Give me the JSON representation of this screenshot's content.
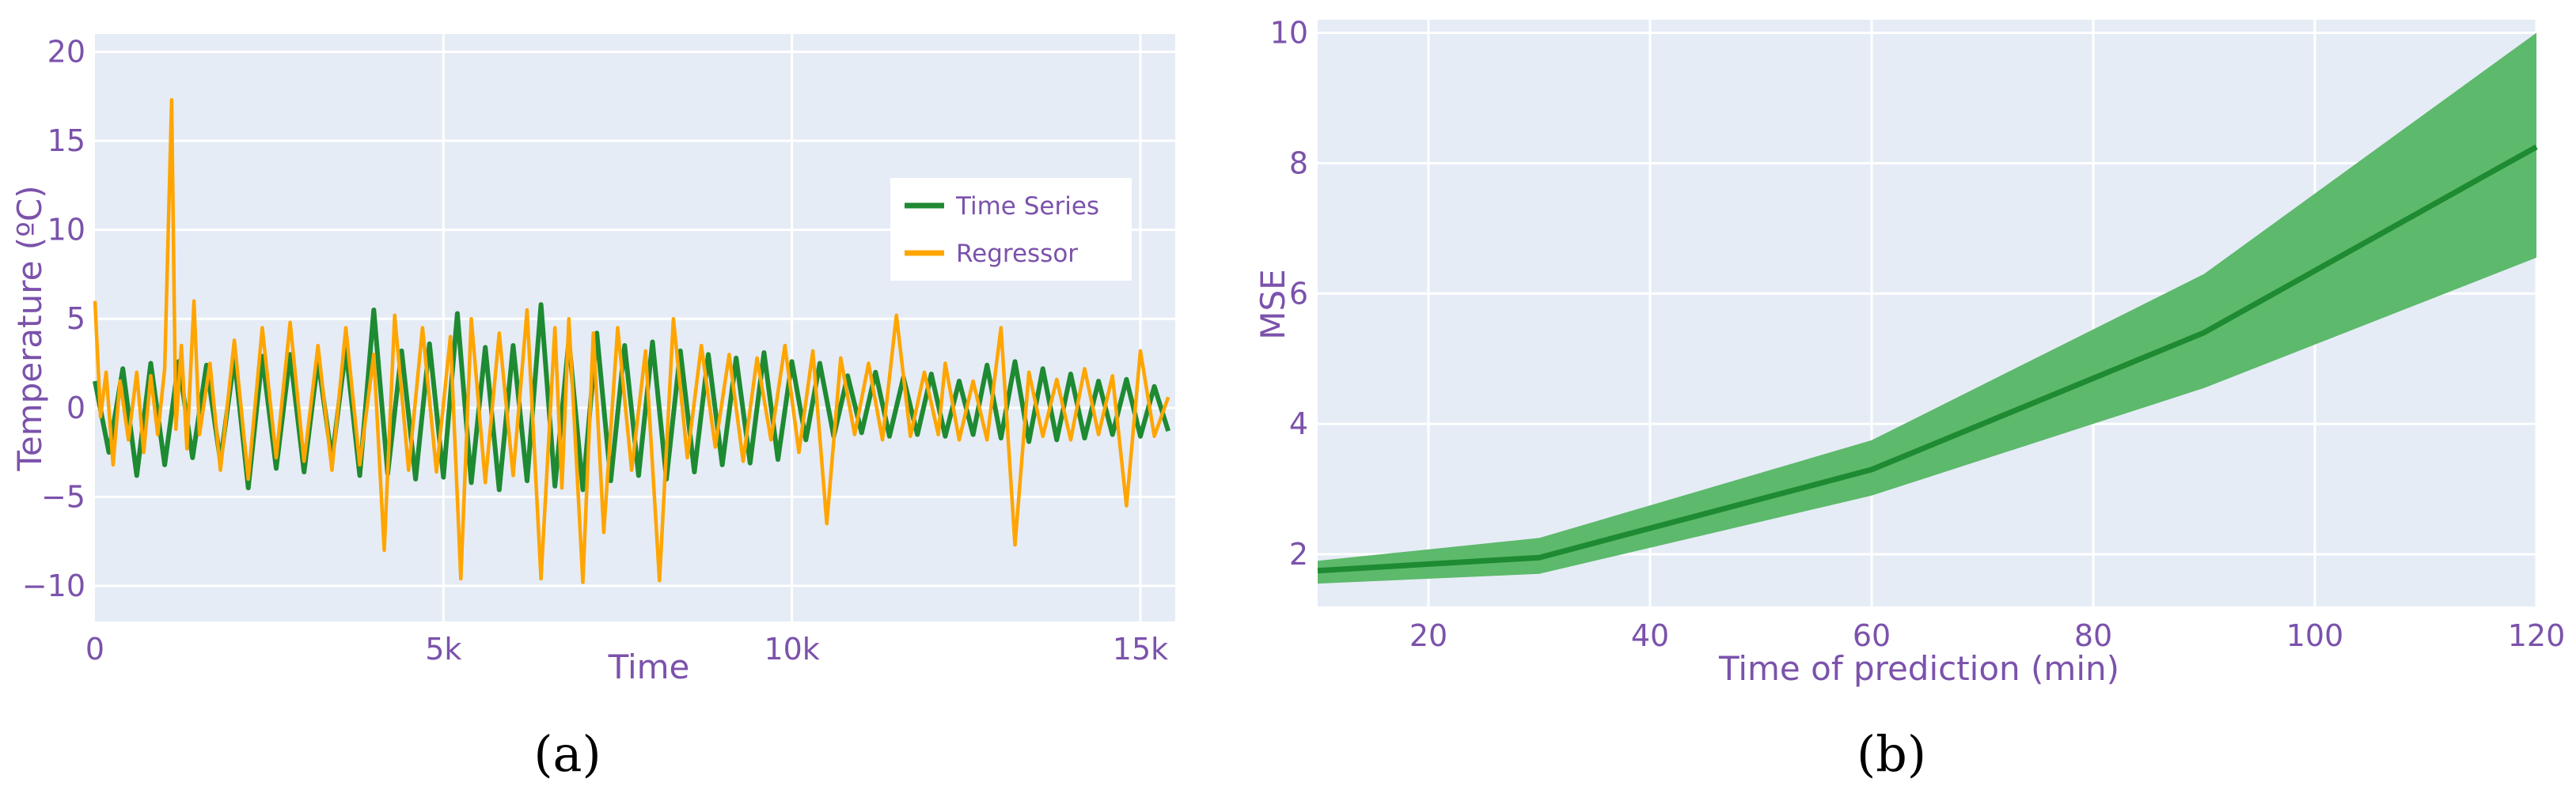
{
  "colors": {
    "plot_bg": "#e5ecf6",
    "grid": "#ffffff",
    "tick_text": "#7b52ab",
    "time_series": "#1e8a32",
    "regressor": "#ffa500",
    "mse_line": "#1e8a32",
    "mse_band": "#5db96b"
  },
  "chart_data": [
    {
      "type": "line",
      "panel_label": "(a)",
      "xlabel": "Time",
      "ylabel": "Temperature (ºC)",
      "xlim": [
        0,
        15500
      ],
      "ylim": [
        -12,
        21
      ],
      "x_ticks": [
        0,
        5000,
        10000,
        15000
      ],
      "x_tick_labels": [
        "0",
        "5k",
        "10k",
        "15k"
      ],
      "y_ticks": [
        -10,
        -5,
        0,
        5,
        10,
        15,
        20
      ],
      "y_tick_labels": [
        "−10",
        "−5",
        "0",
        "5",
        "10",
        "15",
        "20"
      ],
      "grid": true,
      "legend": "right",
      "series": [
        {
          "name": "Time Series",
          "color": "#1e8a32",
          "x": [
            0,
            200,
            400,
            600,
            800,
            1000,
            1200,
            1400,
            1600,
            1800,
            2000,
            2200,
            2400,
            2600,
            2800,
            3000,
            3200,
            3400,
            3600,
            3800,
            4000,
            4200,
            4400,
            4600,
            4800,
            5000,
            5200,
            5400,
            5600,
            5800,
            6000,
            6200,
            6400,
            6600,
            6800,
            7000,
            7200,
            7400,
            7600,
            7800,
            8000,
            8200,
            8400,
            8600,
            8800,
            9000,
            9200,
            9400,
            9600,
            9800,
            10000,
            10200,
            10400,
            10600,
            10800,
            11000,
            11200,
            11400,
            11600,
            11800,
            12000,
            12200,
            12400,
            12600,
            12800,
            13000,
            13200,
            13400,
            13600,
            13800,
            14000,
            14200,
            14400,
            14600,
            14800,
            15000,
            15200,
            15400
          ],
          "y": [
            1.5,
            -2.5,
            2.2,
            -3.8,
            2.5,
            -3.2,
            2.6,
            -2.8,
            2.4,
            -3.0,
            2.8,
            -4.5,
            2.9,
            -3.4,
            3.0,
            -3.6,
            2.7,
            -2.9,
            3.3,
            -3.8,
            5.5,
            -3.7,
            3.2,
            -4.0,
            3.6,
            -3.9,
            5.3,
            -4.2,
            3.4,
            -4.6,
            3.5,
            -4.1,
            5.8,
            -4.4,
            3.8,
            -4.6,
            4.2,
            -4.1,
            3.5,
            -3.8,
            3.7,
            -4.0,
            3.2,
            -3.6,
            3.0,
            -3.2,
            2.8,
            -3.1,
            3.1,
            -2.9,
            2.6,
            -1.8,
            2.5,
            -1.6,
            1.8,
            -1.4,
            2.0,
            -1.6,
            1.7,
            -1.5,
            1.9,
            -1.6,
            1.5,
            -1.5,
            2.4,
            -1.7,
            2.6,
            -1.9,
            2.2,
            -1.8,
            1.9,
            -1.7,
            1.5,
            -1.5,
            1.6,
            -1.6,
            1.2,
            -1.3
          ]
        },
        {
          "name": "Regressor",
          "color": "#ffa500",
          "x": [
            0,
            80,
            160,
            260,
            360,
            480,
            600,
            700,
            800,
            900,
            1000,
            1100,
            1160,
            1240,
            1320,
            1420,
            1500,
            1650,
            1800,
            2000,
            2200,
            2400,
            2600,
            2800,
            3000,
            3200,
            3400,
            3600,
            3800,
            4000,
            4150,
            4300,
            4500,
            4700,
            4900,
            5100,
            5250,
            5400,
            5600,
            5800,
            6000,
            6200,
            6400,
            6600,
            6700,
            6800,
            7000,
            7150,
            7300,
            7500,
            7700,
            7900,
            8100,
            8300,
            8500,
            8700,
            8900,
            9100,
            9300,
            9500,
            9700,
            9900,
            10100,
            10300,
            10500,
            10700,
            10900,
            11100,
            11300,
            11500,
            11700,
            11900,
            12100,
            12200,
            12400,
            12600,
            12800,
            13000,
            13200,
            13400,
            13600,
            13800,
            14000,
            14200,
            14400,
            14600,
            14800,
            15000,
            15200,
            15400
          ],
          "y": [
            6.0,
            -0.5,
            2.0,
            -3.2,
            1.5,
            -1.8,
            2.0,
            -2.5,
            1.8,
            -1.5,
            2.2,
            17.3,
            -1.2,
            3.5,
            -2.3,
            6.0,
            -1.5,
            2.5,
            -3.5,
            3.8,
            -4.0,
            4.5,
            -2.8,
            4.8,
            -3.0,
            3.5,
            -3.5,
            4.5,
            -3.2,
            3.0,
            -8.0,
            5.2,
            -3.5,
            4.5,
            -3.6,
            4.0,
            -9.6,
            5.0,
            -4.2,
            4.2,
            -3.8,
            5.5,
            -9.6,
            4.5,
            -4.5,
            5.0,
            -9.8,
            4.2,
            -7.0,
            4.5,
            -3.5,
            3.2,
            -9.7,
            5.0,
            -2.8,
            3.5,
            -2.2,
            3.0,
            -3.0,
            2.8,
            -1.8,
            3.5,
            -2.5,
            3.2,
            -6.5,
            2.8,
            -1.5,
            2.5,
            -1.8,
            5.2,
            -1.6,
            2.0,
            -1.5,
            2.5,
            -1.8,
            1.5,
            -1.8,
            4.5,
            -7.7,
            2.0,
            -1.6,
            1.6,
            -1.8,
            2.2,
            -1.5,
            1.8,
            -5.5,
            3.2,
            -1.6,
            0.6
          ]
        }
      ]
    },
    {
      "type": "area",
      "panel_label": "(b)",
      "xlabel": "Time of prediction (min)",
      "ylabel": "MSE",
      "xlim": [
        10,
        120
      ],
      "ylim": [
        1.2,
        10.2
      ],
      "x_ticks": [
        20,
        40,
        60,
        80,
        100,
        120
      ],
      "x_tick_labels": [
        "20",
        "40",
        "60",
        "80",
        "100",
        "120"
      ],
      "y_ticks": [
        2,
        4,
        6,
        8,
        10
      ],
      "y_tick_labels": [
        "2",
        "4",
        "6",
        "8",
        "10"
      ],
      "grid": true,
      "series": [
        {
          "color": "#1e8a32",
          "x": [
            10,
            30,
            60,
            90,
            120
          ],
          "y": [
            1.75,
            1.95,
            3.3,
            5.4,
            8.25
          ],
          "lower": [
            1.55,
            1.7,
            2.9,
            4.55,
            6.55
          ],
          "upper": [
            1.9,
            2.25,
            3.75,
            6.3,
            10.0
          ]
        }
      ]
    }
  ]
}
